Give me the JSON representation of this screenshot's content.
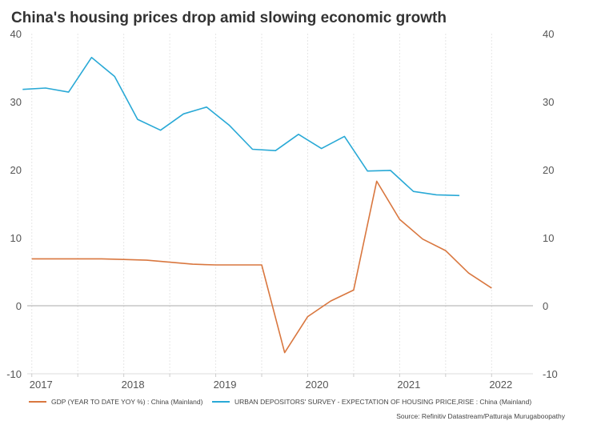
{
  "title": "China's housing prices drop amid slowing economic growth",
  "source": "Source: Refinitiv Datastream/Patturaja Murugaboopathy",
  "colors": {
    "gdp": "#d9773f",
    "survey": "#29a9d6",
    "grid": "#e6e6e6",
    "zero": "#aaaaaa"
  },
  "chart_data": {
    "type": "line",
    "title": "China's housing prices drop amid slowing economic growth",
    "x_tick_labels": [
      "2017",
      "2018",
      "2019",
      "2020",
      "2021",
      "2022"
    ],
    "xlim": [
      2016.9,
      2022.4
    ],
    "ylim": [
      -10,
      40
    ],
    "y_tick_labels": [
      "40",
      "30",
      "20",
      "10",
      "0",
      "-10"
    ],
    "grid": "vertical dashed",
    "legend_position": "bottom",
    "series": [
      {
        "name": "GDP (YEAR TO DATE YOY %) : China (Mainland)",
        "x": [
          2016.95,
          2017.2,
          2017.45,
          2017.7,
          2017.95,
          2018.2,
          2018.45,
          2018.7,
          2018.95,
          2019.2,
          2019.45,
          2019.7,
          2019.95,
          2020.2,
          2020.45,
          2020.7,
          2020.95,
          2021.2,
          2021.45,
          2021.7,
          2021.95,
          2022.2
        ],
        "values": [
          6.9,
          6.9,
          6.9,
          6.9,
          6.8,
          6.7,
          6.4,
          6.1,
          6.0,
          6.0,
          6.0,
          -6.9,
          -1.6,
          0.7,
          2.3,
          18.3,
          12.7,
          9.8,
          8.1,
          4.8,
          2.6,
          null
        ]
      },
      {
        "name": "URBAN DEPOSITORS' SURVEY - EXPECTATION OF HOUSING PRICE,RISE : China (Mainland)",
        "x": [
          2016.85,
          2017.1,
          2017.35,
          2017.6,
          2017.85,
          2018.1,
          2018.35,
          2018.6,
          2018.85,
          2019.1,
          2019.35,
          2019.6,
          2019.85,
          2020.1,
          2020.35,
          2020.6,
          2020.85,
          2021.1,
          2021.35,
          2021.6,
          2021.85,
          2022.1
        ],
        "values": [
          31.8,
          32.0,
          31.4,
          36.5,
          33.7,
          27.4,
          25.8,
          28.2,
          29.2,
          26.5,
          23.0,
          22.8,
          25.2,
          23.1,
          24.9,
          19.8,
          19.9,
          16.8,
          16.3,
          16.2,
          null,
          null
        ]
      }
    ]
  }
}
